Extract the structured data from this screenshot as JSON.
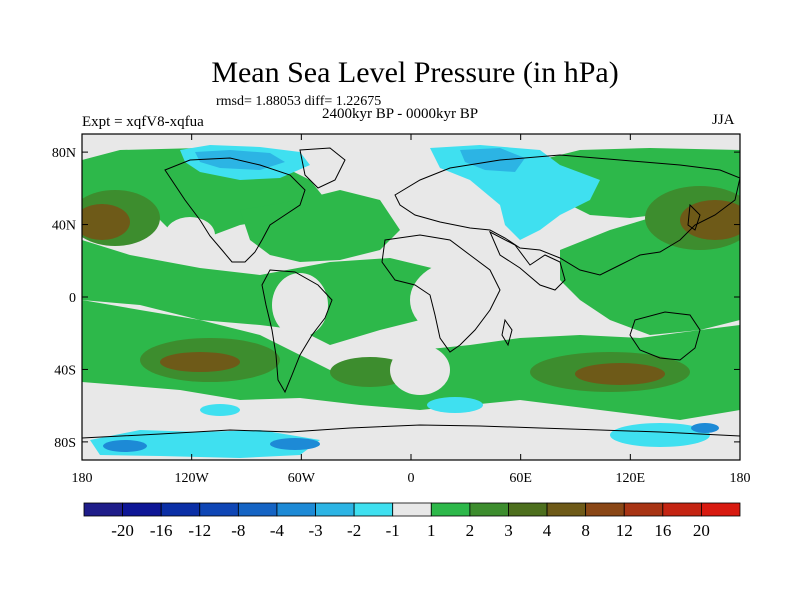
{
  "figure": {
    "title": "Mean Sea Level Pressure (in hPa)",
    "stats": "rmsd= 1.88053 diff= 1.22675",
    "period": "2400kyr BP - 0000kyr BP",
    "experiment": "Expt = xqfV8-xqfua",
    "season": "JJA"
  },
  "chart_data": {
    "type": "heatmap",
    "title": "Mean Sea Level Pressure (in hPa)",
    "xlabel": "",
    "ylabel": "",
    "xlim": [
      -180,
      180
    ],
    "ylim": [
      -90,
      90
    ],
    "x_ticks": [
      "180",
      "120W",
      "60W",
      "0",
      "60E",
      "120E",
      "180"
    ],
    "x_tick_values": [
      -180,
      -120,
      -60,
      0,
      60,
      120,
      180
    ],
    "y_ticks": [
      "80N",
      "40N",
      "0",
      "40S",
      "80S"
    ],
    "y_tick_values": [
      80,
      40,
      0,
      -40,
      -80
    ],
    "colorbar": {
      "labels": [
        "-20",
        "-16",
        "-12",
        "-8",
        "-4",
        "-3",
        "-2",
        "-1",
        "1",
        "2",
        "3",
        "4",
        "8",
        "12",
        "16",
        "20"
      ],
      "colors": [
        "#1f1d8a",
        "#0e1696",
        "#0b2fa6",
        "#0f46b5",
        "#1564c4",
        "#1d8ad6",
        "#2cb4e4",
        "#3fe0f0",
        "#e8e8e8",
        "#2db84a",
        "#3d8d2e",
        "#4d6f1e",
        "#6e5a18",
        "#8a4716",
        "#a83414",
        "#c42412",
        "#d81a10"
      ]
    },
    "regions": [
      {
        "name": "north-pacific-high",
        "lon": -155,
        "lat": 40,
        "level": "4"
      },
      {
        "name": "north-atlantic-anomaly",
        "lon": -55,
        "lat": 40,
        "level": "2"
      },
      {
        "name": "arctic-low",
        "lon": -60,
        "lat": 78,
        "level": "-2"
      },
      {
        "name": "eurasia-low",
        "lon": 40,
        "lat": 60,
        "level": "-1"
      },
      {
        "name": "west-pacific-high",
        "lon": 160,
        "lat": 40,
        "level": "4"
      },
      {
        "name": "south-pacific-high",
        "lon": -120,
        "lat": -30,
        "level": "3"
      },
      {
        "name": "south-atlantic-high",
        "lon": -20,
        "lat": -45,
        "level": "3"
      },
      {
        "name": "indian-ocean-high",
        "lon": 100,
        "lat": -45,
        "level": "4"
      },
      {
        "name": "antarctic-low",
        "lon": -150,
        "lat": -85,
        "level": "-4"
      }
    ]
  }
}
